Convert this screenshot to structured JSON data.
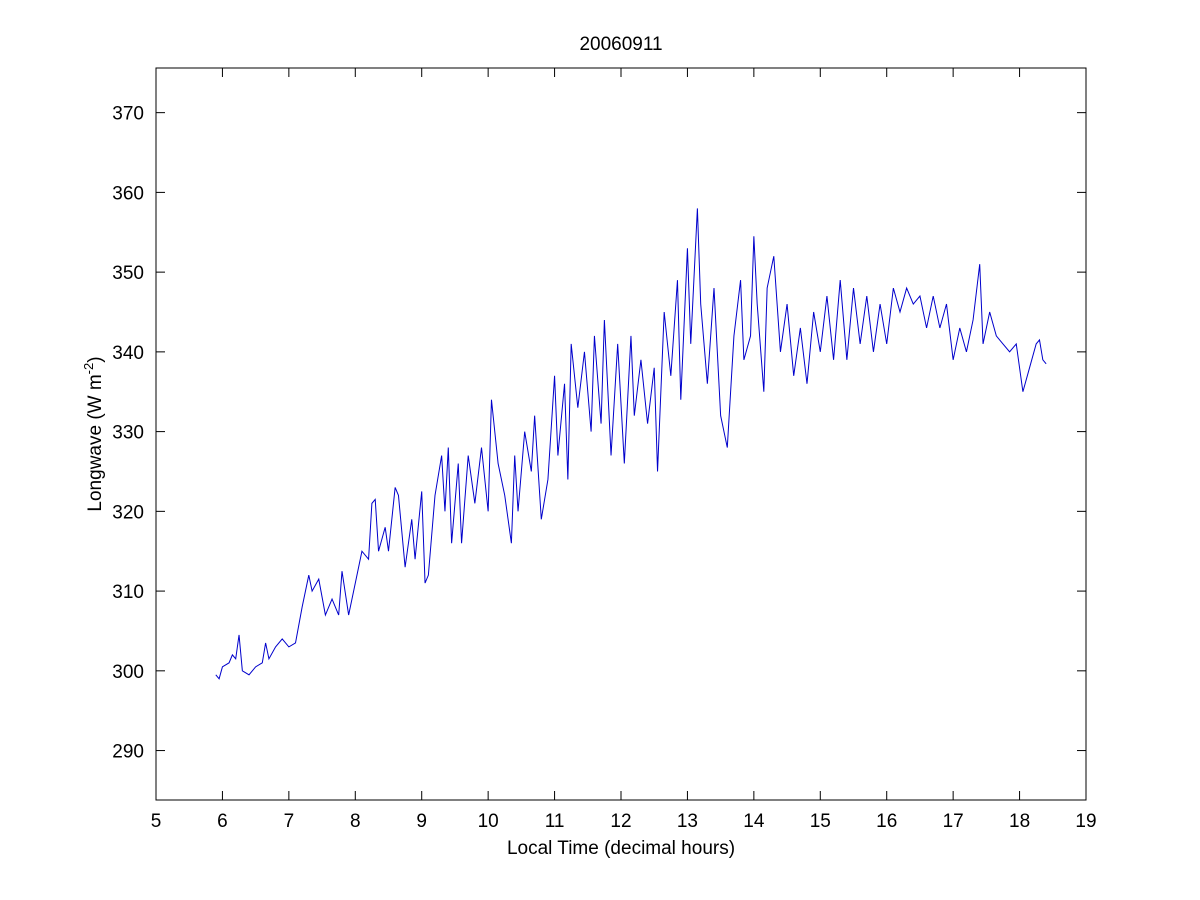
{
  "chart_data": {
    "type": "line",
    "title": "20060911",
    "xlabel": "Local Time (decimal hours)",
    "ylabel": [
      "Longwave (W m",
      "-2",
      ")"
    ],
    "xlim": [
      5,
      19
    ],
    "xticks": [
      5,
      6,
      7,
      8,
      9,
      10,
      11,
      12,
      13,
      14,
      15,
      16,
      17,
      18,
      19
    ],
    "ylim": [
      283.8,
      375.6
    ],
    "yticks": [
      290,
      300,
      310,
      320,
      330,
      340,
      350,
      360,
      370
    ],
    "grid": false,
    "series": [
      {
        "color": "#0000cc",
        "x": [
          5.9,
          5.95,
          6.0,
          6.1,
          6.15,
          6.2,
          6.25,
          6.3,
          6.4,
          6.5,
          6.6,
          6.65,
          6.7,
          6.8,
          6.9,
          7.0,
          7.1,
          7.2,
          7.3,
          7.35,
          7.45,
          7.55,
          7.65,
          7.75,
          7.8,
          7.9,
          8.0,
          8.1,
          8.2,
          8.25,
          8.3,
          8.35,
          8.45,
          8.5,
          8.6,
          8.65,
          8.75,
          8.85,
          8.9,
          9.0,
          9.05,
          9.1,
          9.2,
          9.3,
          9.35,
          9.4,
          9.45,
          9.55,
          9.6,
          9.7,
          9.8,
          9.9,
          10.0,
          10.05,
          10.15,
          10.25,
          10.35,
          10.4,
          10.45,
          10.55,
          10.65,
          10.7,
          10.8,
          10.9,
          11.0,
          11.05,
          11.15,
          11.2,
          11.25,
          11.35,
          11.45,
          11.55,
          11.6,
          11.7,
          11.75,
          11.85,
          11.95,
          12.05,
          12.15,
          12.2,
          12.3,
          12.4,
          12.5,
          12.55,
          12.65,
          12.75,
          12.85,
          12.9,
          13.0,
          13.05,
          13.15,
          13.2,
          13.3,
          13.4,
          13.5,
          13.6,
          13.7,
          13.8,
          13.85,
          13.95,
          14.0,
          14.05,
          14.15,
          14.2,
          14.3,
          14.4,
          14.5,
          14.6,
          14.7,
          14.8,
          14.9,
          15.0,
          15.1,
          15.2,
          15.3,
          15.4,
          15.5,
          15.6,
          15.7,
          15.8,
          15.9,
          16.0,
          16.1,
          16.2,
          16.3,
          16.4,
          16.5,
          16.6,
          16.7,
          16.8,
          16.9,
          17.0,
          17.1,
          17.2,
          17.3,
          17.4,
          17.45,
          17.55,
          17.65,
          17.75,
          17.85,
          17.95,
          18.05,
          18.15,
          18.25,
          18.3,
          18.35,
          18.4
        ],
        "values": [
          299.5,
          299,
          300.5,
          301,
          302,
          301.5,
          304.5,
          300,
          299.5,
          300.5,
          301,
          303.5,
          301.5,
          303,
          304,
          303,
          303.5,
          308,
          312,
          310,
          311.5,
          307,
          309,
          307,
          312.5,
          307,
          311,
          315,
          314,
          321,
          321.5,
          315,
          318,
          315,
          323,
          322,
          313,
          319,
          314,
          322.5,
          311,
          312,
          322,
          327,
          320,
          328,
          316,
          326,
          316,
          327,
          321,
          328,
          320,
          334,
          326,
          322,
          316,
          327,
          320,
          330,
          325,
          332,
          319,
          324,
          337,
          327,
          336,
          324,
          341,
          333,
          340,
          330,
          342,
          331,
          344,
          327,
          341,
          326,
          342,
          332,
          339,
          331,
          338,
          325,
          345,
          337,
          349,
          334,
          353,
          341,
          358,
          346,
          336,
          348,
          332,
          328,
          342,
          349,
          339,
          342,
          354.5,
          346,
          335,
          348,
          352,
          340,
          346,
          337,
          343,
          336,
          345,
          340,
          347,
          339,
          349,
          339,
          348,
          341,
          347,
          340,
          346,
          341,
          348,
          345,
          348,
          346,
          347,
          343,
          347,
          343,
          346,
          339,
          343,
          340,
          344,
          351,
          341,
          345,
          342,
          341,
          340,
          341,
          335,
          338,
          341,
          341.5,
          339,
          338.5
        ]
      }
    ]
  }
}
